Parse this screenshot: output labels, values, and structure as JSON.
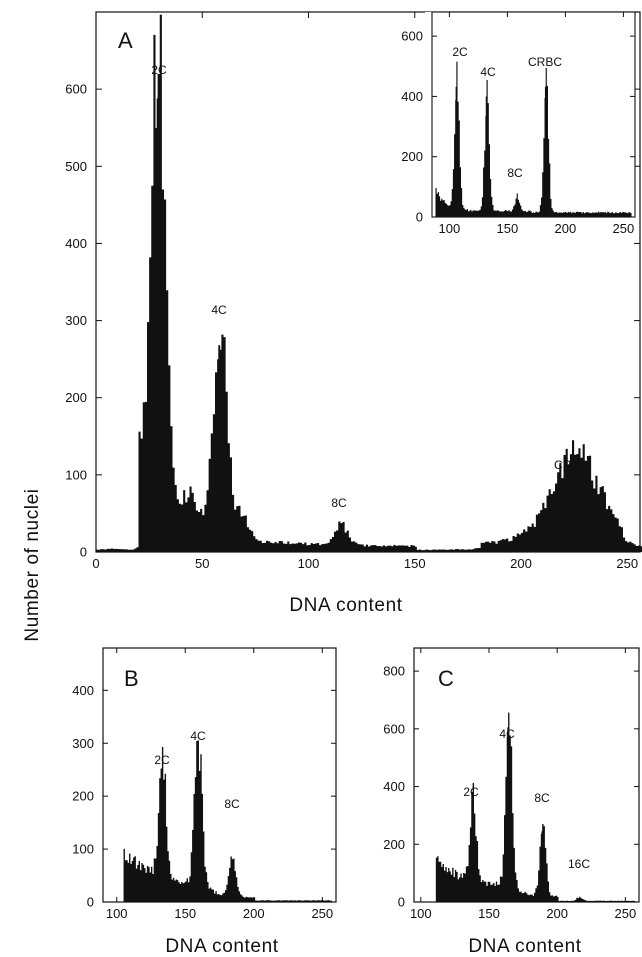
{
  "figure": {
    "ylabel": "Number of nuclei"
  },
  "chart_data": [
    {
      "id": "A",
      "type": "histogram",
      "panel_label": "A",
      "xlabel": "DNA content",
      "xlim": [
        0,
        256
      ],
      "ylim": [
        0,
        700
      ],
      "x_ticks": [
        0,
        50,
        100,
        150,
        200,
        250
      ],
      "y_ticks": [
        0,
        100,
        200,
        300,
        400,
        500,
        600
      ],
      "peaks": [
        {
          "label": "2C",
          "x": 29,
          "height": 588
        },
        {
          "label": "4C",
          "x": 58,
          "height": 268
        },
        {
          "label": "8C",
          "x": 115,
          "height": 27
        },
        {
          "label": "CRBC",
          "x": 226,
          "height": 90
        }
      ],
      "inset": {
        "type": "histogram",
        "xlim": [
          85,
          260
        ],
        "ylim": [
          0,
          680
        ],
        "x_ticks": [
          100,
          150,
          200,
          250
        ],
        "y_ticks": [
          0,
          200,
          400,
          600
        ],
        "peaks": [
          {
            "label": "2C",
            "x": 106,
            "height": 432
          },
          {
            "label": "4C",
            "x": 132,
            "height": 400
          },
          {
            "label": "8C",
            "x": 158,
            "height": 55
          },
          {
            "label": "CRBC",
            "x": 183,
            "height": 432
          }
        ]
      }
    },
    {
      "id": "B",
      "type": "histogram",
      "panel_label": "B",
      "xlabel": "DNA content",
      "xlim": [
        90,
        260
      ],
      "ylim": [
        0,
        480
      ],
      "x_ticks": [
        100,
        150,
        200,
        250
      ],
      "y_ticks": [
        0,
        100,
        200,
        300,
        400
      ],
      "peaks": [
        {
          "label": "2C",
          "x": 133,
          "height": 228
        },
        {
          "label": "4C",
          "x": 159,
          "height": 272
        },
        {
          "label": "8C",
          "x": 184,
          "height": 72
        }
      ]
    },
    {
      "id": "C",
      "type": "histogram",
      "panel_label": "C",
      "xlabel": "DNA content",
      "xlim": [
        95,
        260
      ],
      "ylim": [
        0,
        880
      ],
      "x_ticks": [
        100,
        150,
        200,
        250
      ],
      "y_ticks": [
        0,
        200,
        400,
        600,
        800
      ],
      "peaks": [
        {
          "label": "2C",
          "x": 138,
          "height": 295
        },
        {
          "label": "4C",
          "x": 164,
          "height": 605
        },
        {
          "label": "8C",
          "x": 189,
          "height": 245
        },
        {
          "label": "16C",
          "x": 216,
          "height": 14
        }
      ]
    }
  ]
}
